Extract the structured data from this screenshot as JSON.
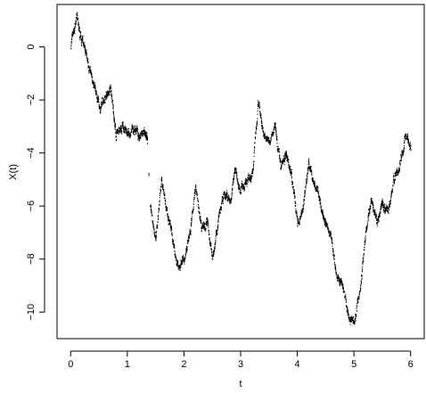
{
  "chart_data": {
    "type": "scatter",
    "title": "",
    "xlabel": "t",
    "ylabel": "X(t)",
    "xlim": [
      -0.24,
      6.24
    ],
    "ylim": [
      -11.0,
      1.6
    ],
    "x_ticks": [
      0,
      1,
      2,
      3,
      4,
      5,
      6
    ],
    "x_tick_labels": [
      "0",
      "1",
      "2",
      "3",
      "4",
      "5",
      "6"
    ],
    "y_ticks": [
      0,
      -2,
      -4,
      -6,
      -8,
      -10
    ],
    "y_tick_labels": [
      "0",
      "−2",
      "−4",
      "−6",
      "−8",
      "−10"
    ],
    "grid": false,
    "legend": "none",
    "point_color": "#000000",
    "series": [
      {
        "x": [
          0,
          0.1,
          0.2,
          0.3,
          0.4,
          0.5,
          0.6,
          0.7,
          0.8,
          0.9,
          1.0,
          1.1,
          1.2,
          1.3,
          1.35,
          1.4,
          1.5,
          1.6,
          1.7,
          1.8,
          1.9,
          2.0,
          2.1,
          2.2,
          2.3,
          2.4,
          2.5,
          2.6,
          2.7,
          2.8,
          2.9,
          3.0,
          3.1,
          3.2,
          3.3,
          3.4,
          3.5,
          3.6,
          3.7,
          3.8,
          3.9,
          4.0,
          4.1,
          4.2,
          4.3,
          4.4,
          4.5,
          4.6,
          4.7,
          4.8,
          4.9,
          5.0,
          5.1,
          5.2,
          5.3,
          5.4,
          5.5,
          5.6,
          5.7,
          5.8,
          5.9,
          6.0
        ],
        "y": [
          0.1,
          1.1,
          0.2,
          -0.5,
          -1.4,
          -2.3,
          -2.0,
          -1.5,
          -3.3,
          -3.0,
          -3.3,
          -3.0,
          -3.5,
          -3.2,
          -3.5,
          -6.0,
          -7.2,
          -5.0,
          -6.3,
          -7.2,
          -8.4,
          -8.0,
          -7.0,
          -5.2,
          -6.8,
          -6.5,
          -8.0,
          -6.5,
          -5.5,
          -5.8,
          -4.7,
          -5.3,
          -5.1,
          -4.8,
          -2.1,
          -3.3,
          -3.6,
          -3.0,
          -4.5,
          -4.0,
          -5.0,
          -6.6,
          -6.0,
          -4.3,
          -5.2,
          -5.8,
          -6.7,
          -7.2,
          -8.7,
          -9.0,
          -10.2,
          -10.4,
          -9.2,
          -7.0,
          -5.7,
          -6.6,
          -6.0,
          -6.2,
          -5.0,
          -4.5,
          -3.3,
          -3.7
        ]
      }
    ]
  }
}
